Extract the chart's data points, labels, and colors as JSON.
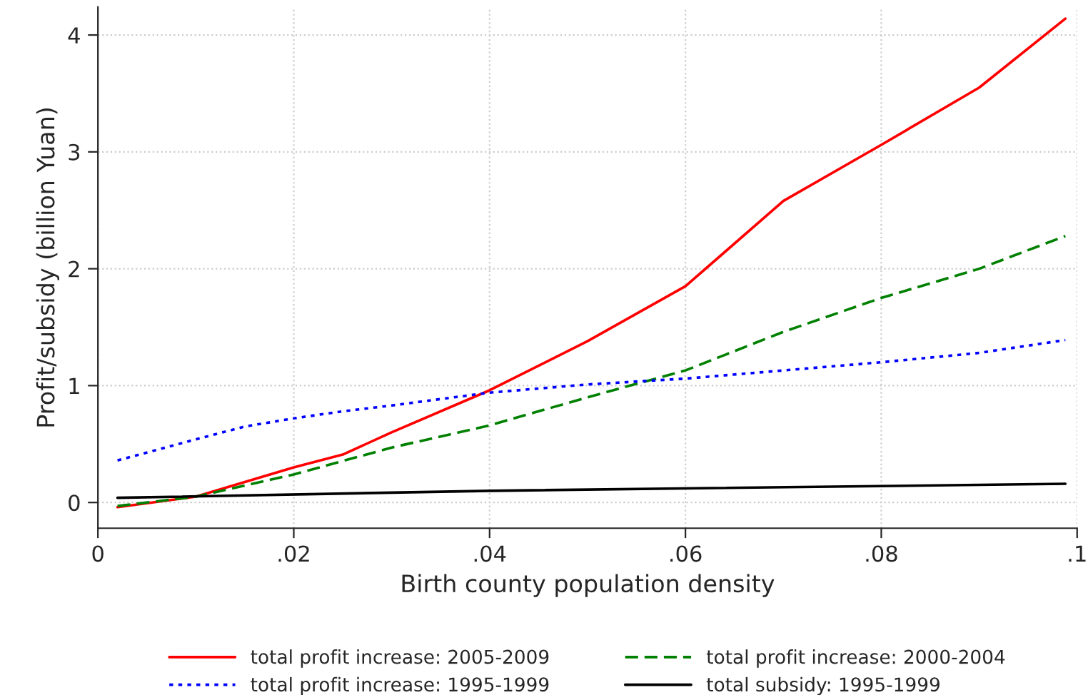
{
  "chart_data": {
    "type": "line",
    "xlabel": "Birth county population density",
    "ylabel": "Profit/subsidy (billion Yuan)",
    "xlim": [
      0,
      0.1
    ],
    "ylim": [
      -0.22,
      4.24
    ],
    "xticks": [
      0,
      {
        "value": 0.02,
        "label": ".02"
      },
      {
        "value": 0.04,
        "label": ".04"
      },
      {
        "value": 0.06,
        "label": ".06"
      },
      {
        "value": 0.08,
        "label": ".08"
      },
      {
        "value": 0.1,
        "label": ".1"
      }
    ],
    "yticks": [
      0,
      1,
      2,
      3,
      4
    ],
    "grid": true,
    "legend": "bottom",
    "series": [
      {
        "name": "total profit increase: 2005-2009",
        "color": "#ff0000",
        "line_style": "solid",
        "x": [
          0.002,
          0.01,
          0.02,
          0.025,
          0.03,
          0.04,
          0.05,
          0.06,
          0.07,
          0.08,
          0.09,
          0.0988
        ],
        "values": [
          -0.04,
          0.05,
          0.3,
          0.41,
          0.6,
          0.96,
          1.38,
          1.85,
          2.58,
          3.06,
          3.55,
          4.14
        ]
      },
      {
        "name": "total profit increase: 2000-2004",
        "color": "#008000",
        "line_style": "dashed",
        "x": [
          0.002,
          0.01,
          0.02,
          0.03,
          0.04,
          0.05,
          0.06,
          0.07,
          0.08,
          0.09,
          0.0988
        ],
        "values": [
          -0.03,
          0.05,
          0.24,
          0.47,
          0.66,
          0.9,
          1.13,
          1.46,
          1.75,
          2.0,
          2.28
        ]
      },
      {
        "name": "total profit increase: 1995-1999",
        "color": "#0000ff",
        "line_style": "dotted",
        "x": [
          0.002,
          0.01,
          0.015,
          0.02,
          0.025,
          0.03,
          0.04,
          0.05,
          0.06,
          0.07,
          0.08,
          0.09,
          0.0988
        ],
        "values": [
          0.36,
          0.54,
          0.65,
          0.72,
          0.78,
          0.83,
          0.94,
          1.01,
          1.06,
          1.13,
          1.2,
          1.28,
          1.39
        ]
      },
      {
        "name": "total subsidy: 1995-1999",
        "color": "#000000",
        "line_style": "solid",
        "x": [
          0.002,
          0.04,
          0.0988
        ],
        "values": [
          0.04,
          0.1,
          0.16
        ]
      }
    ]
  }
}
